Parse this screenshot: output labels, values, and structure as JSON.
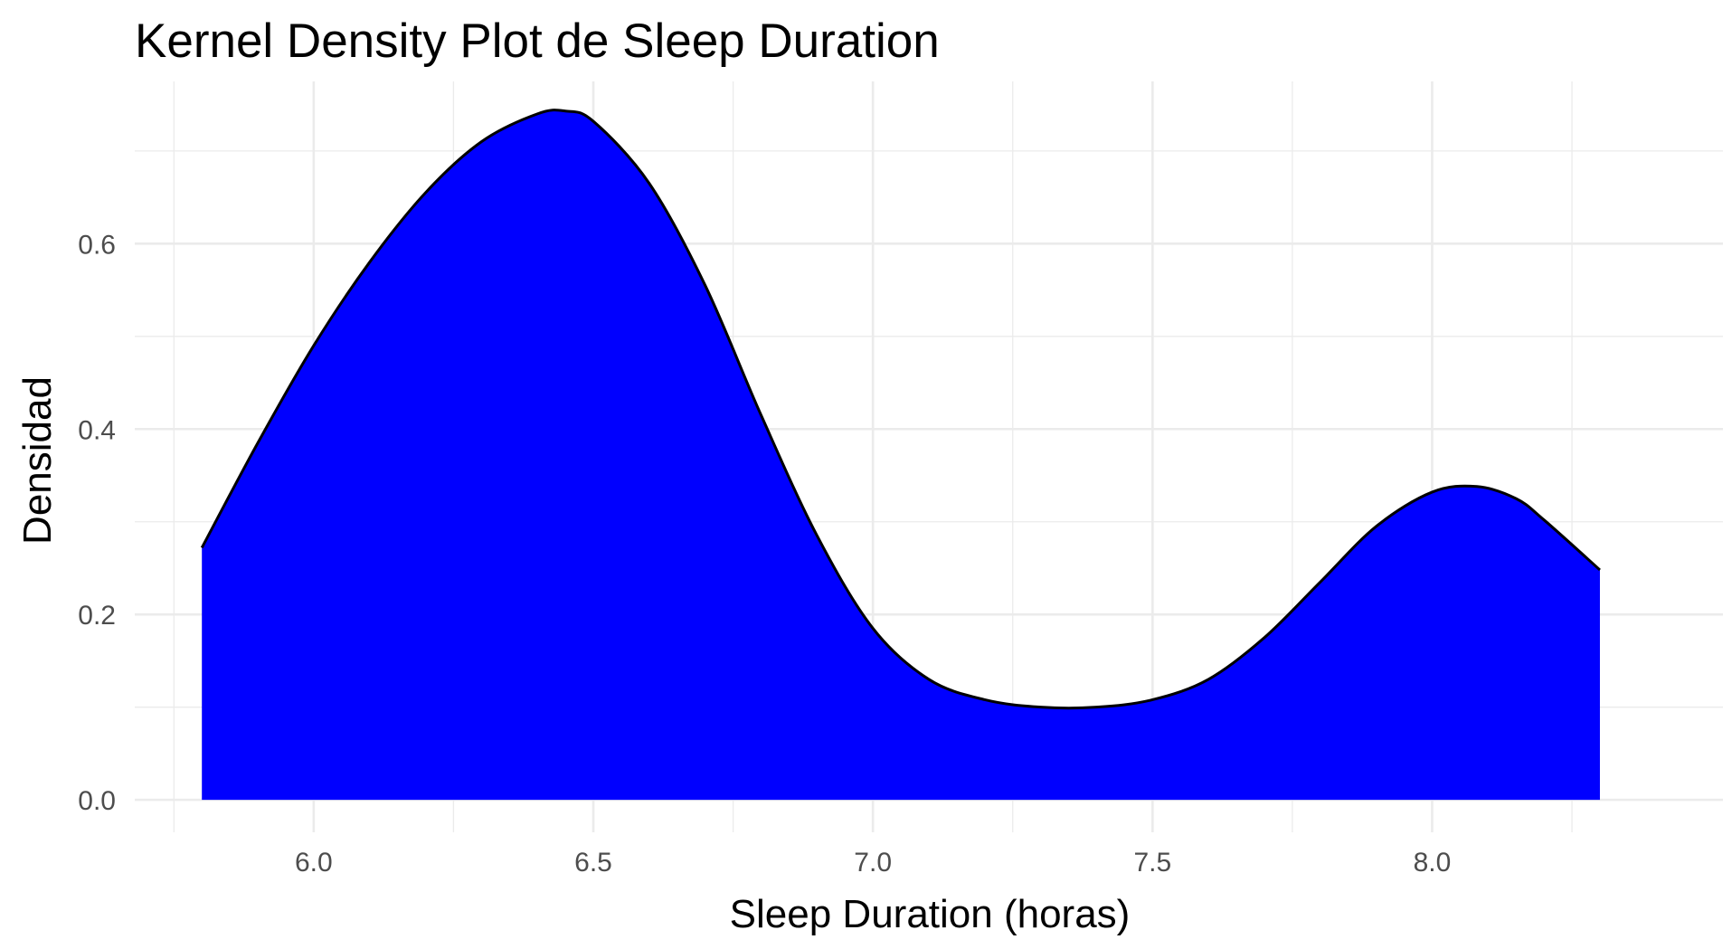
{
  "chart_data": {
    "type": "area",
    "title": "Kernel Density Plot de Sleep Duration",
    "xlabel": "Sleep Duration (horas)",
    "ylabel": "Densidad",
    "xlim": [
      5.68,
      8.52
    ],
    "ylim": [
      -0.035,
      0.775
    ],
    "x_ticks": [
      6.0,
      6.5,
      7.0,
      7.5,
      8.0
    ],
    "x_tick_labels": [
      "6.0",
      "6.5",
      "7.0",
      "7.5",
      "8.0"
    ],
    "y_ticks": [
      0.0,
      0.2,
      0.4,
      0.6
    ],
    "y_tick_labels": [
      "0.0",
      "0.2",
      "0.4",
      "0.6"
    ],
    "grid": true,
    "legend": "none",
    "fill_color": "#0000ff",
    "outline_color": "#000000",
    "series": [
      {
        "x": [
          5.8,
          5.9,
          6.0,
          6.1,
          6.2,
          6.3,
          6.4,
          6.45,
          6.5,
          6.6,
          6.7,
          6.8,
          6.9,
          7.0,
          7.1,
          7.2,
          7.3,
          7.4,
          7.5,
          7.6,
          7.7,
          7.8,
          7.9,
          8.0,
          8.08,
          8.15,
          8.2,
          8.3
        ],
        "y": [
          0.272,
          0.385,
          0.49,
          0.58,
          0.655,
          0.71,
          0.74,
          0.743,
          0.732,
          0.665,
          0.555,
          0.415,
          0.285,
          0.185,
          0.13,
          0.108,
          0.1,
          0.1,
          0.108,
          0.13,
          0.175,
          0.235,
          0.295,
          0.332,
          0.338,
          0.325,
          0.302,
          0.248
        ]
      }
    ]
  }
}
